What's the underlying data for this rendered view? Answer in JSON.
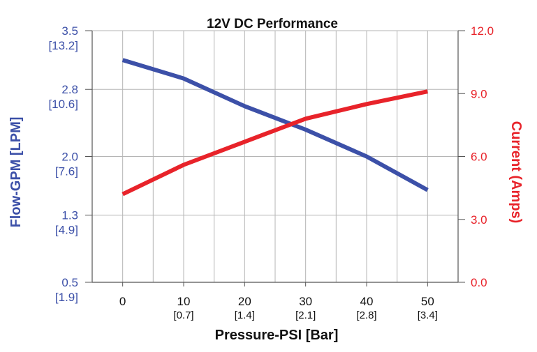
{
  "colors": {
    "flow": "#3c50a8",
    "current": "#e8232a",
    "grid": "#b5b5b5",
    "axis": "#555555",
    "text": "#111111"
  },
  "chart_data": {
    "type": "line",
    "title": "12V DC Performance",
    "xlabel": "Pressure-PSI [Bar]",
    "ylabel_left": "Flow-GPM [LPM]",
    "ylabel_right": "Current (Amps)",
    "x_ticks": [
      {
        "value": 0,
        "label": "0",
        "sublabel": ""
      },
      {
        "value": 10,
        "label": "10",
        "sublabel": "[0.7]"
      },
      {
        "value": 20,
        "label": "20",
        "sublabel": "[1.4]"
      },
      {
        "value": 30,
        "label": "30",
        "sublabel": "[2.1]"
      },
      {
        "value": 40,
        "label": "40",
        "sublabel": "[2.8]"
      },
      {
        "value": 50,
        "label": "50",
        "sublabel": "[3.4]"
      }
    ],
    "xlim": [
      -5,
      55
    ],
    "grid": true,
    "y_left": {
      "ylim": [
        0.5,
        3.5
      ],
      "ticks": [
        {
          "value": 3.5,
          "label": "3.5",
          "sublabel": "[13.2]"
        },
        {
          "value": 2.8,
          "label": "2.8",
          "sublabel": "[10.6]"
        },
        {
          "value": 2.0,
          "label": "2.0",
          "sublabel": "[7.6]"
        },
        {
          "value": 1.3,
          "label": "1.3",
          "sublabel": "[4.9]"
        },
        {
          "value": 0.5,
          "label": "0.5",
          "sublabel": "[1.9]"
        }
      ]
    },
    "y_right": {
      "ylim": [
        0,
        12
      ],
      "ticks": [
        {
          "value": 12,
          "label": "12.0"
        },
        {
          "value": 9,
          "label": "9.0"
        },
        {
          "value": 6,
          "label": "6.0"
        },
        {
          "value": 3,
          "label": "3.0"
        },
        {
          "value": 0,
          "label": "0.0"
        }
      ]
    },
    "series": [
      {
        "axis": "left",
        "color_key": "flow",
        "x": [
          0,
          10,
          20,
          30,
          40,
          50
        ],
        "y": [
          3.15,
          2.93,
          2.6,
          2.32,
          2.0,
          1.6
        ]
      },
      {
        "axis": "right",
        "color_key": "current",
        "x": [
          0,
          10,
          20,
          30,
          40,
          50
        ],
        "y": [
          4.2,
          5.6,
          6.7,
          7.8,
          8.5,
          9.1
        ]
      }
    ]
  }
}
